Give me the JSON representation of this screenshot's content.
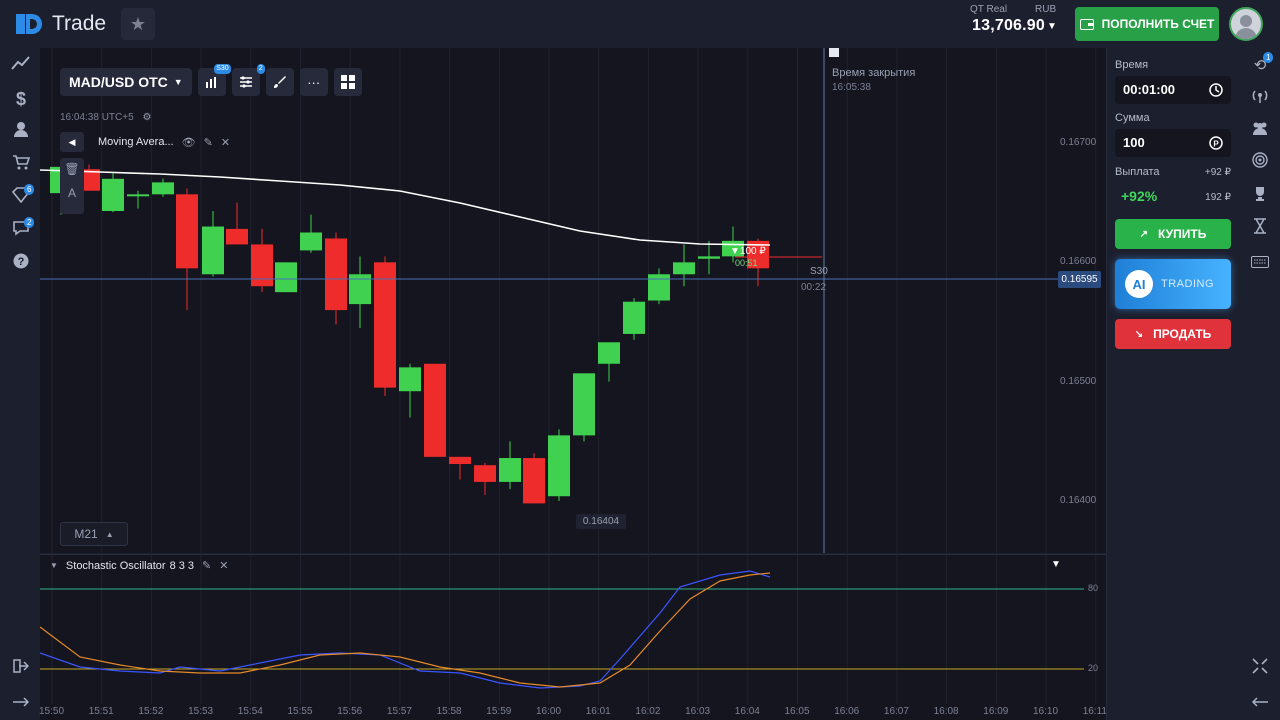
{
  "header": {
    "logo_text": "Trade",
    "account_type": "QT Real",
    "currency": "RUB",
    "balance": "13,706.90",
    "deposit_label": "ПОПОЛНИТЬ СЧЕТ"
  },
  "left_nav": {
    "items": [
      {
        "icon": "chart-icon"
      },
      {
        "icon": "dollar-icon"
      },
      {
        "icon": "user-icon"
      },
      {
        "icon": "cart-icon"
      },
      {
        "icon": "diamond-icon",
        "badge": "6"
      },
      {
        "icon": "chat-icon",
        "badge": "2"
      },
      {
        "icon": "help-icon"
      }
    ],
    "bottom_items": [
      {
        "icon": "logout-icon"
      },
      {
        "icon": "arrow-right-icon"
      }
    ]
  },
  "toolbar": {
    "pair": "MAD/USD OTC",
    "chart_type_badge": "S30",
    "indicators_badge": "2",
    "time_tz": "16:04:38 UTC+5",
    "indicator_name": "Moving Avera...",
    "timeframe": "M21"
  },
  "chart": {
    "y_ticks": [
      "0.16700",
      "0.16600",
      "0.16500",
      "0.16400"
    ],
    "current_price": "0.16595",
    "low_label": "0.16404",
    "trade_label": "▼100 ₽",
    "trade_sub": "00:51",
    "expiry_title": "Время закрытия",
    "expiry_time": "16:05:38",
    "s30_label": "S30",
    "countdown": "00:22"
  },
  "oscillator": {
    "name": "Stochastic Oscillator",
    "params": "8 3 3",
    "level_high": "80",
    "level_low": "20"
  },
  "time_axis": [
    "15:50",
    "15:51",
    "15:52",
    "15:53",
    "15:54",
    "15:55",
    "15:56",
    "15:57",
    "15:58",
    "15:59",
    "16:00",
    "16:01",
    "16:02",
    "16:03",
    "16:04",
    "16:05",
    "16:06",
    "16:07",
    "16:08",
    "16:09",
    "16:10",
    "16:11"
  ],
  "panel": {
    "time_label": "Время",
    "time_value": "00:01:00",
    "amount_label": "Сумма",
    "amount_value": "100",
    "payout_label": "Выплата",
    "payout_extra": "+92 ₽",
    "payout_pct": "+92%",
    "payout_amount": "192 ₽",
    "buy_label": "КУПИТЬ",
    "ai_label": "AI",
    "ai_text": "TRADING",
    "sell_label": "ПРОДАТЬ"
  },
  "right_nav": {
    "items": [
      {
        "icon": "history-icon",
        "badge": "1"
      },
      {
        "icon": "signal-icon"
      },
      {
        "icon": "community-icon"
      },
      {
        "icon": "target-icon"
      },
      {
        "icon": "trophy-icon"
      },
      {
        "icon": "hourglass-icon"
      },
      {
        "icon": "keyboard-icon"
      }
    ],
    "bottom_items": [
      {
        "icon": "fullscreen-icon"
      },
      {
        "icon": "arrow-left-icon"
      }
    ]
  },
  "colors": {
    "bull": "#3fd14f",
    "bear": "#ef2c2c",
    "ma_line": "#ffffff",
    "stoch_k": "#3a55ff",
    "stoch_d": "#e58a2a",
    "level_high": "#2fb58a",
    "level_low": "#c8a623"
  }
}
